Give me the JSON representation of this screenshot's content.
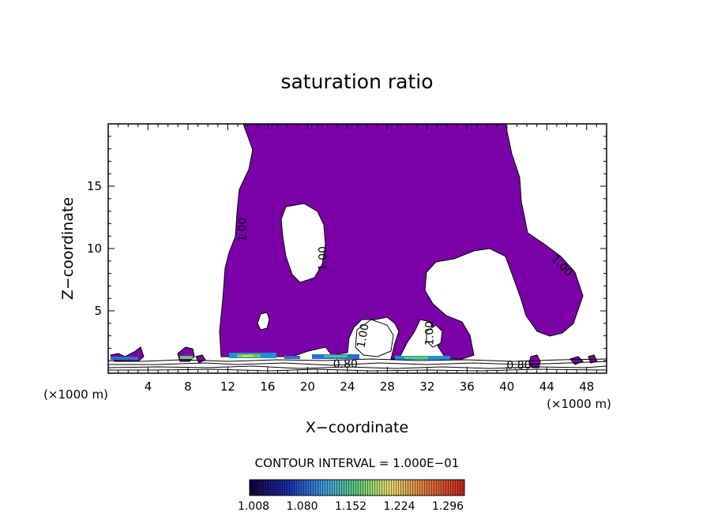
{
  "chart_data": {
    "type": "contour",
    "title": "saturation ratio",
    "xlabel": "X−coordinate",
    "ylabel": "Z−coordinate",
    "x_unit_left": "(×1000 m)",
    "x_unit_right": "(×1000 m)",
    "xlim": [
      0,
      50
    ],
    "ylim": [
      0,
      20
    ],
    "x_ticks": [
      4,
      8,
      12,
      16,
      20,
      24,
      28,
      32,
      36,
      40,
      44,
      48
    ],
    "y_ticks": [
      5,
      10,
      15
    ],
    "contour_labels": [
      {
        "text": "1.00",
        "x": 13.5,
        "z": 11.5,
        "rotate": -90
      },
      {
        "text": "1.00",
        "x": 21.6,
        "z": 9.2,
        "rotate": -90
      },
      {
        "text": "1.00",
        "x": 45.5,
        "z": 8.6,
        "rotate": 45
      },
      {
        "text": "1.00",
        "x": 25.6,
        "z": 3.0,
        "rotate": -80
      },
      {
        "text": "1.00",
        "x": 32.3,
        "z": 3.2,
        "rotate": -90
      },
      {
        "text": "0.80",
        "x": 23.8,
        "z": 0.7,
        "rotate": 0
      },
      {
        "text": "0.80",
        "x": 41.2,
        "z": 0.6,
        "rotate": 0
      }
    ],
    "fill_color": "#7b00a8",
    "contour_interval_text": "CONTOUR INTERVAL = 1.000E−01",
    "colorbar": {
      "labels": [
        "1.008",
        "1.080",
        "1.152",
        "1.224",
        "1.296"
      ],
      "range": [
        1.008,
        1.296
      ]
    },
    "grid": false
  }
}
